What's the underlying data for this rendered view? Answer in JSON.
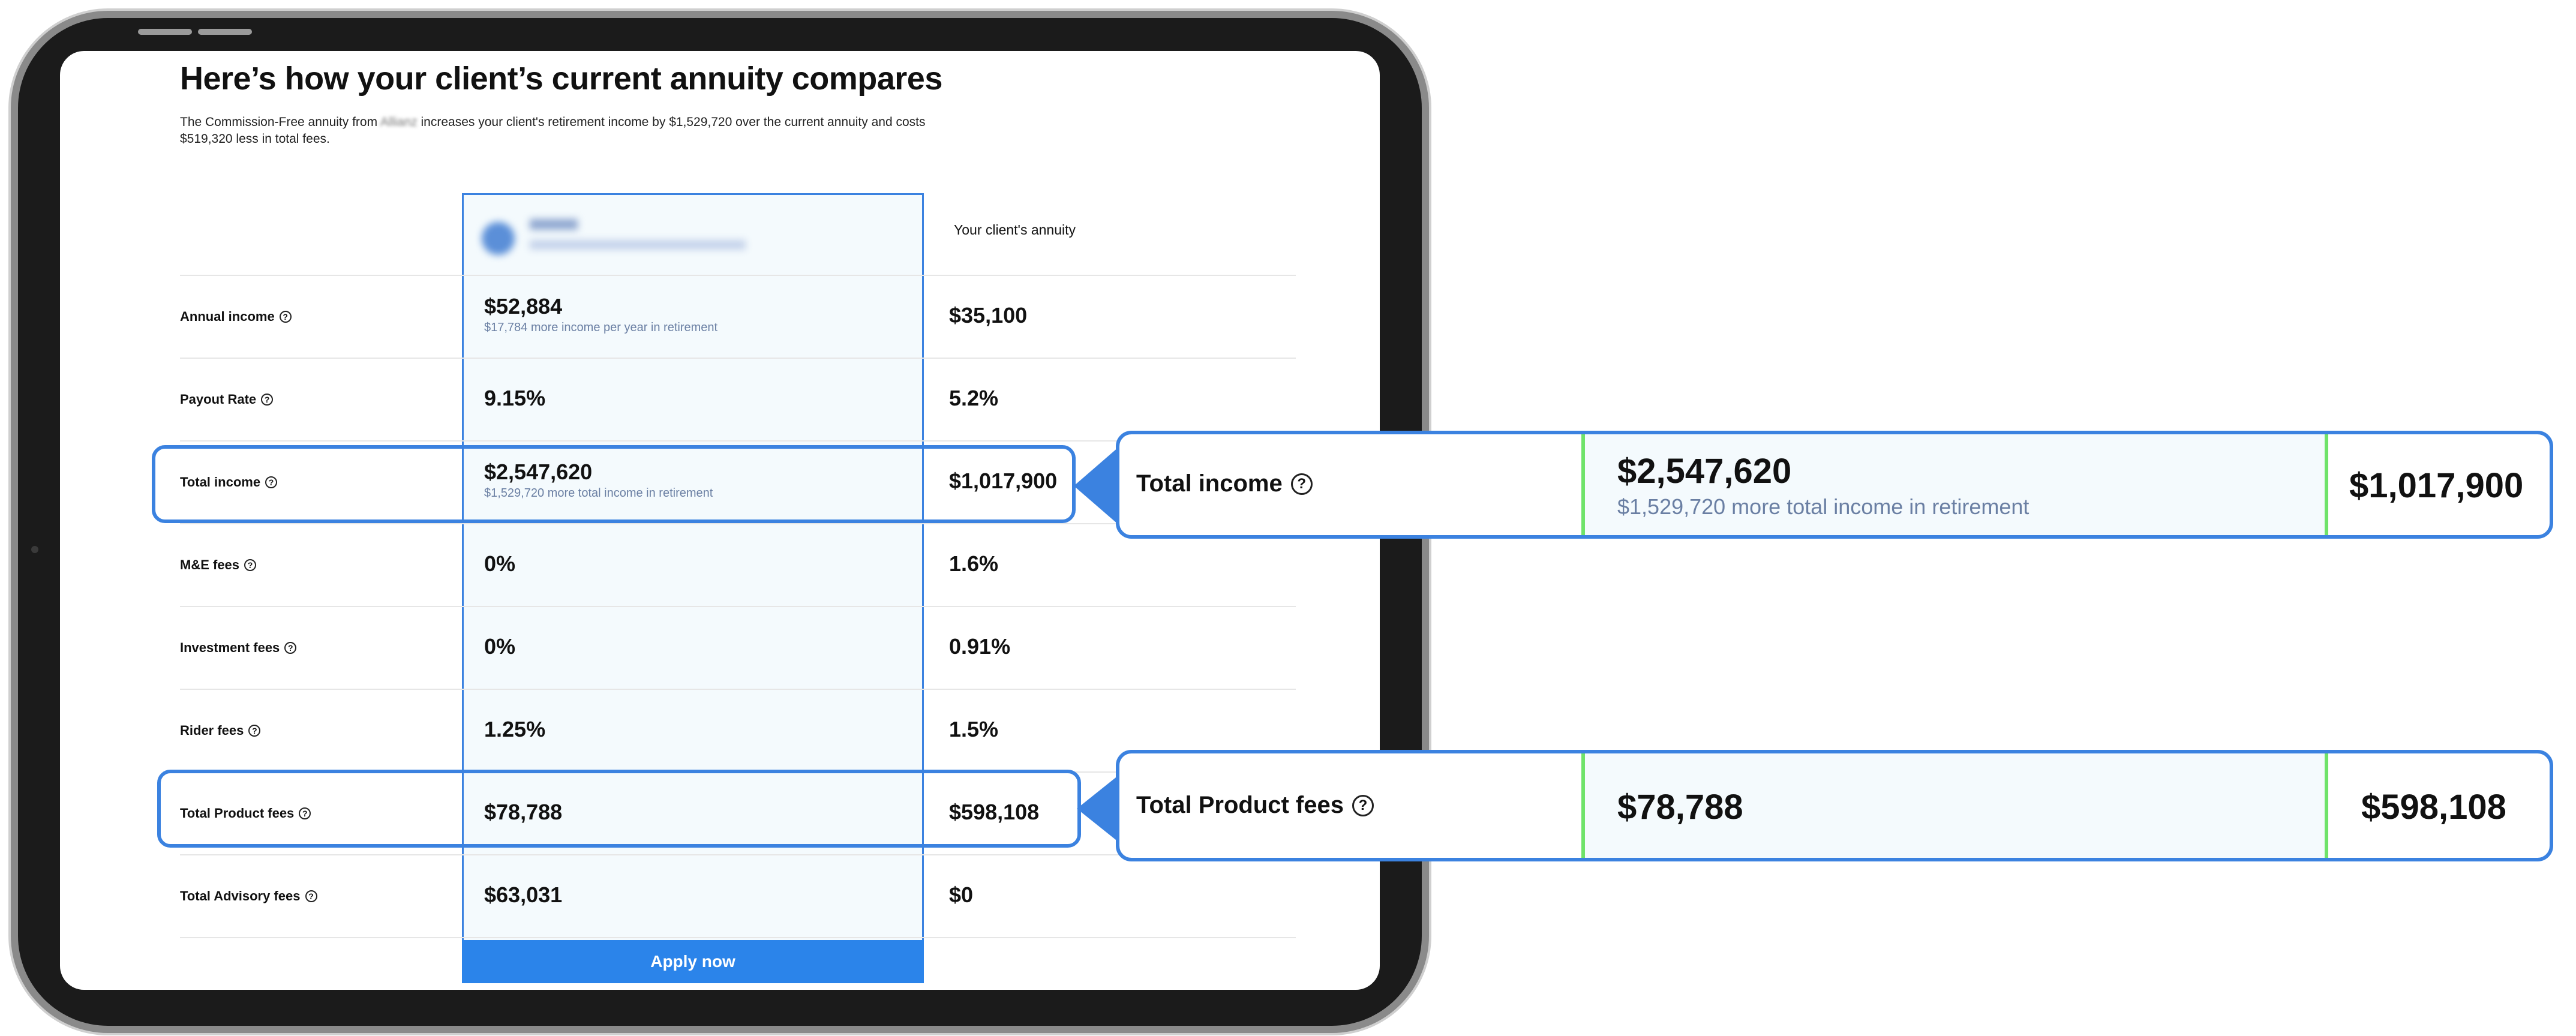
{
  "title": "Here’s how your client’s current annuity compares",
  "description": {
    "part1": "The Commission-Free annuity from",
    "blurred_brand": "Allianz",
    "part2": "increases your client's retirement income by $1,529,720 over the current annuity and costs $519,320 less in total fees."
  },
  "columns": {
    "client_annuity": "Your client's annuity"
  },
  "rows": [
    {
      "label": "Annual income",
      "ours": "$52,884",
      "ours_sub": "$17,784 more income per year in retirement",
      "theirs": "$35,100"
    },
    {
      "label": "Payout Rate",
      "ours": "9.15%",
      "ours_sub": "",
      "theirs": "5.2%"
    },
    {
      "label": "Total income",
      "ours": "$2,547,620",
      "ours_sub": "$1,529,720 more total income in retirement",
      "theirs": "$1,017,900"
    },
    {
      "label": "M&E fees",
      "ours": "0%",
      "ours_sub": "",
      "theirs": "1.6%"
    },
    {
      "label": "Investment fees",
      "ours": "0%",
      "ours_sub": "",
      "theirs": "0.91%"
    },
    {
      "label": "Rider fees",
      "ours": "1.25%",
      "ours_sub": "",
      "theirs": "1.5%"
    },
    {
      "label": "Total Product fees",
      "ours": "$78,788",
      "ours_sub": "",
      "theirs": "$598,108"
    },
    {
      "label": "Total Advisory fees",
      "ours": "$63,031",
      "ours_sub": "",
      "theirs": "$0"
    }
  ],
  "apply_button": "Apply now",
  "help_glyph": "?",
  "callouts": [
    {
      "label": "Total income",
      "ours": "$2,547,620",
      "ours_sub": "$1,529,720 more total income in retirement",
      "theirs": "$1,017,900"
    },
    {
      "label": "Total Product fees",
      "ours": "$78,788",
      "ours_sub": "",
      "theirs": "$598,108"
    }
  ],
  "colors": {
    "accent": "#3b82e0",
    "button": "#2b84ea",
    "highlight_border": "#6fe36a",
    "column_bg": "#f4fafd"
  }
}
